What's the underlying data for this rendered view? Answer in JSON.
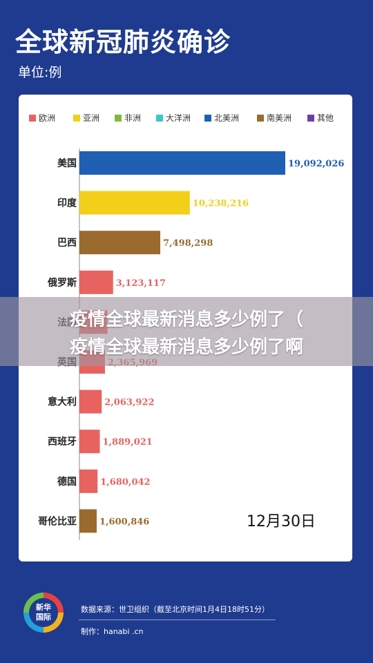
{
  "header": {
    "title": "全球新冠肺炎确诊",
    "unit": "单位:例"
  },
  "colors": {
    "欧洲": "#e8625f",
    "亚洲": "#f3cf1a",
    "非洲": "#7dbb3c",
    "大洋洲": "#3cc7c7",
    "北美洲": "#1f5fb4",
    "南美洲": "#9b6a2f",
    "其他": "#6c3fa5",
    "panel_bg": "#ffffff",
    "page_bg": "#1f3b8f"
  },
  "chart_data": {
    "type": "bar",
    "orientation": "horizontal",
    "legend": [
      "欧洲",
      "亚洲",
      "非洲",
      "大洋洲",
      "北美洲",
      "南美洲",
      "其他"
    ],
    "categories": [
      "美国",
      "印度",
      "巴西",
      "俄罗斯",
      "法国",
      "英国",
      "意大利",
      "西班牙",
      "德国",
      "哥伦比亚"
    ],
    "values": [
      19092026,
      10238216,
      7498298,
      3123117,
      2600000,
      2365969,
      2063922,
      1889021,
      1680042,
      1600846
    ],
    "value_labels": [
      "19,092,026",
      "10,238,216",
      "7,498,298",
      "3,123,117",
      "",
      "2,365,969",
      "2,063,922",
      "1,889,021",
      "1,680,042",
      "1,600,846"
    ],
    "continents": [
      "北美洲",
      "亚洲",
      "南美洲",
      "欧洲",
      "欧洲",
      "欧洲",
      "欧洲",
      "欧洲",
      "欧洲",
      "南美洲"
    ],
    "date_label": "12月30日",
    "xlim": [
      0,
      19092026
    ]
  },
  "overlay": {
    "line1": "疫情全球最新消息多少例了（",
    "line2": "疫情全球最新消息多少例了啊"
  },
  "footer": {
    "logo_text_1": "新华",
    "logo_text_2": "国际",
    "source": "数据来源：世卫组织（截至北京时间1月4日18时51分）",
    "maker": "制作：hanabi .cn"
  }
}
